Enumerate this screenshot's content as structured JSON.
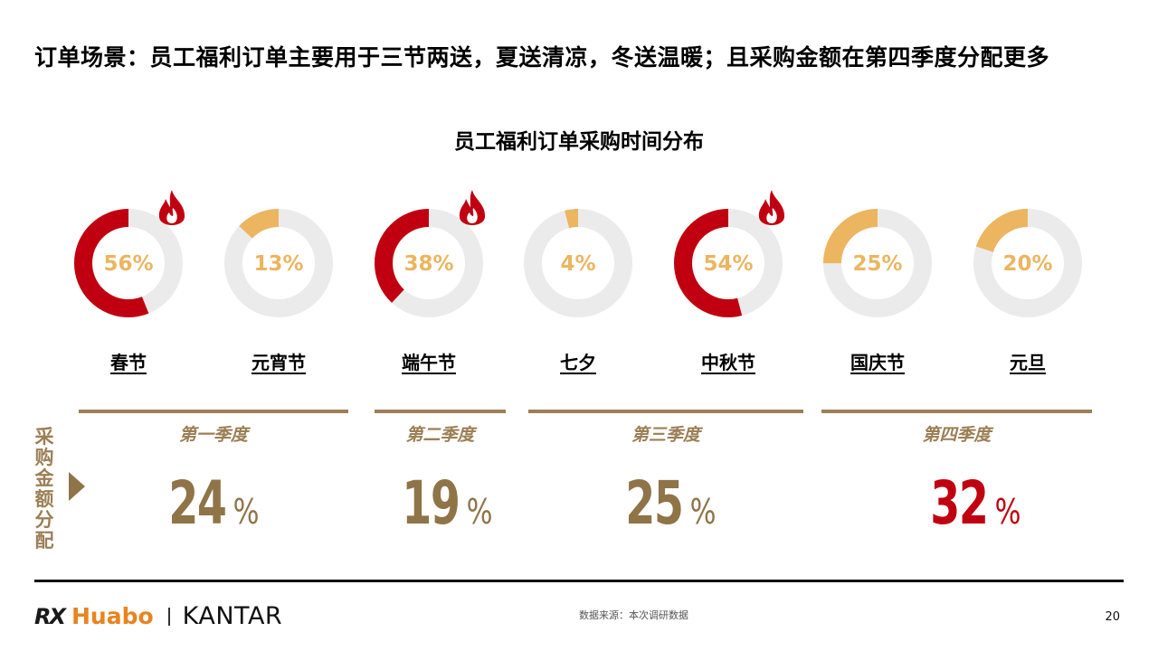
{
  "headline": "订单场景：员工福利订单主要用于三节两送，夏送清凉，冬送温暖；且采购金额在第四季度分配更多",
  "colors": {
    "highlight": "#c00010",
    "normal": "#ecb560",
    "track": "#ebebeb",
    "gold": "#9b7f55",
    "flame": "#c00010"
  },
  "chart_data": [
    {
      "type": "pie",
      "title": "员工福利订单采购时间分布",
      "categories": [
        "春节",
        "元宵节",
        "端午节",
        "七夕",
        "中秋节",
        "国庆节",
        "元旦"
      ],
      "values": [
        56,
        13,
        38,
        4,
        54,
        25,
        20
      ],
      "labels": [
        "56%",
        "13%",
        "38%",
        "4%",
        "54%",
        "25%",
        "20%"
      ],
      "highlighted": [
        true,
        false,
        true,
        false,
        true,
        false,
        false
      ],
      "flame_icons": [
        true,
        false,
        true,
        false,
        true,
        false,
        false
      ]
    },
    {
      "type": "table",
      "title": "采购金额分配",
      "categories": [
        "第一季度",
        "第二季度",
        "第三季度",
        "第四季度"
      ],
      "values": [
        24,
        19,
        25,
        32
      ],
      "unit": "%",
      "highlighted": [
        false,
        false,
        false,
        true
      ]
    }
  ],
  "side_label": "采购金额分配",
  "footer": {
    "logo_rx": "RX",
    "logo_huabo": "Huabo",
    "logo_kantar": "KANTAR",
    "source": "数据来源：本次调研数据",
    "page": "20"
  }
}
